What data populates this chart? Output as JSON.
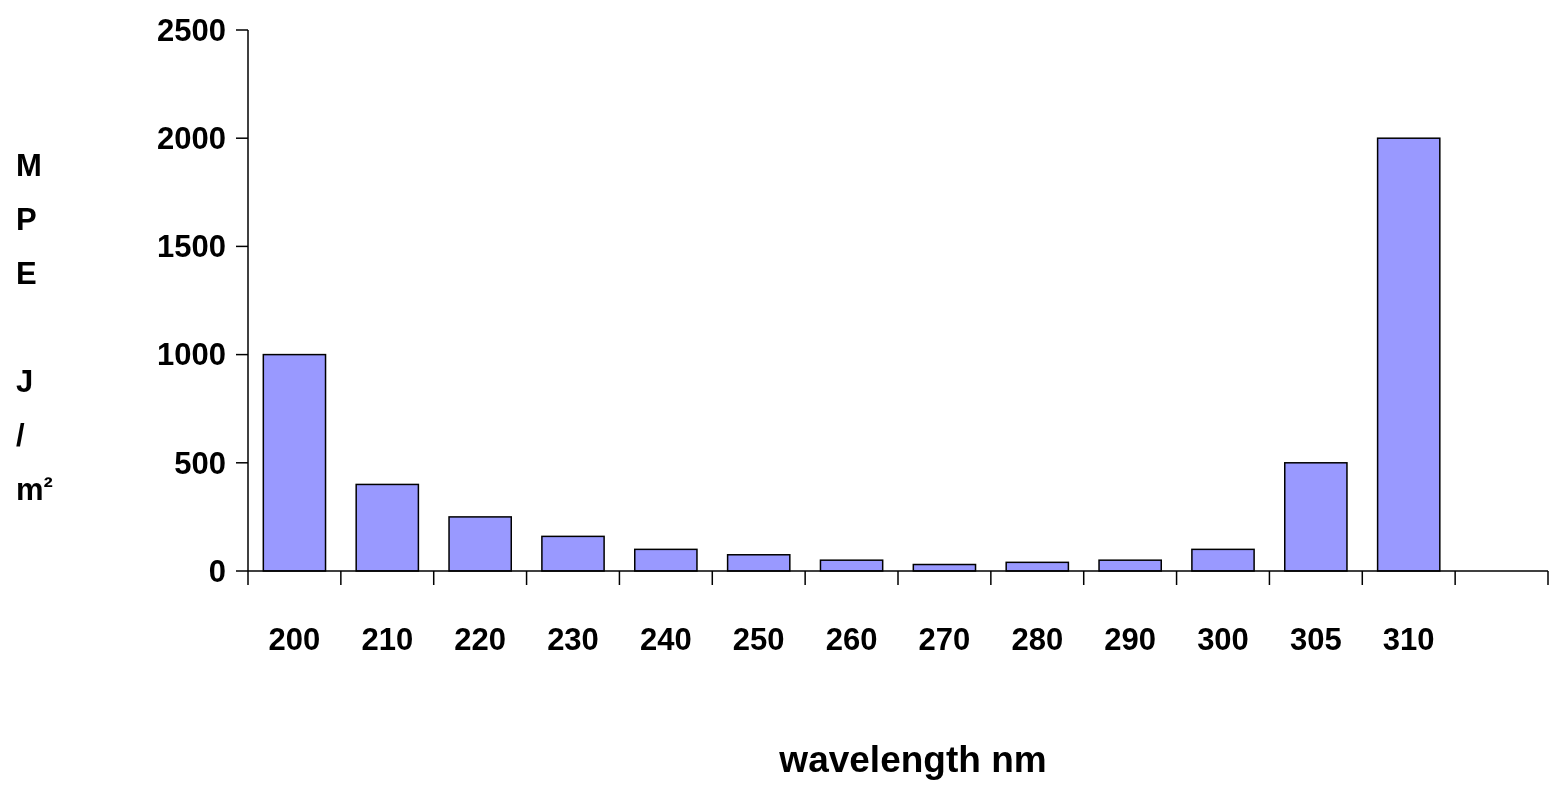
{
  "chart_data": {
    "type": "bar",
    "xlabel": "wavelength nm",
    "ylabel": "MPE J/m²",
    "categories": [
      "200",
      "210",
      "220",
      "230",
      "240",
      "250",
      "260",
      "270",
      "280",
      "290",
      "300",
      "305",
      "310",
      null
    ],
    "values": [
      1000,
      400,
      250,
      160,
      100,
      75,
      50,
      30,
      40,
      50,
      100,
      500,
      2000,
      null
    ],
    "color": "#9999ff",
    "ylim": [
      0,
      2500
    ],
    "yticks": [
      0,
      500,
      1000,
      1500,
      2000,
      2500
    ],
    "grid": false
  }
}
